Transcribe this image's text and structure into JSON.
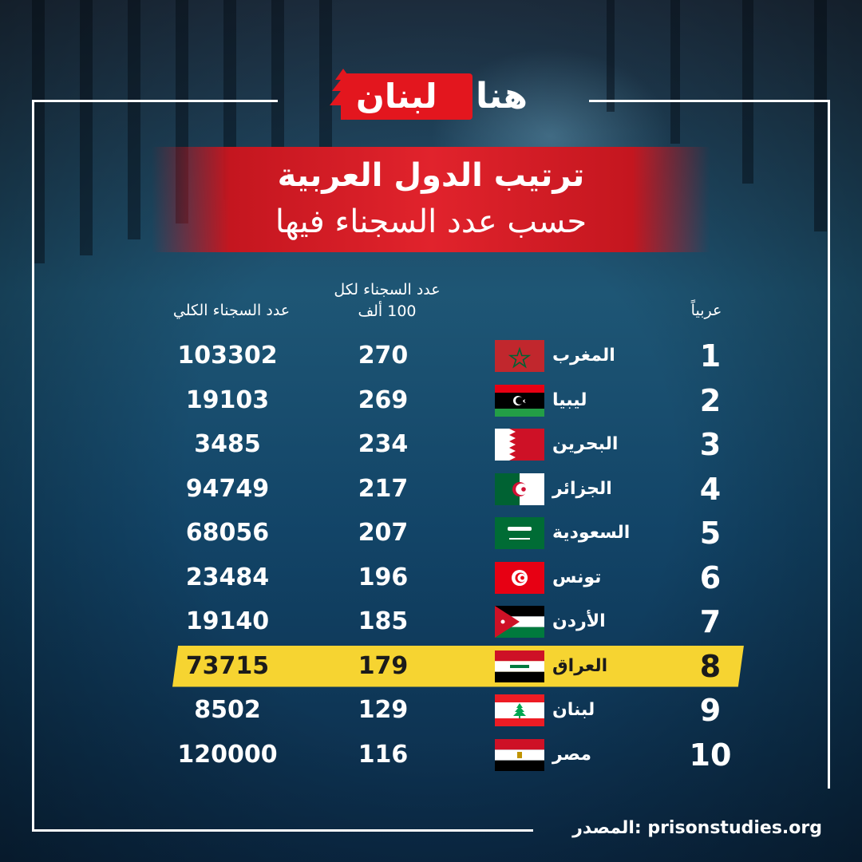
{
  "brand": {
    "logo_part1": "لبنان",
    "logo_part2": "هنا"
  },
  "title": {
    "line1": "ترتيب الدول العربية",
    "line2": "حسب عدد السجناء فيها"
  },
  "headers": {
    "rank": "عربياً",
    "per_100k": "عدد السجناء لكل 100 ألف",
    "total": "عدد السجناء الكلي"
  },
  "colors": {
    "brand_red": "#e3161e",
    "highlight_yellow": "#f6d431",
    "background_blue": "#1e5675"
  },
  "chart_data": {
    "type": "table",
    "title": "ترتيب الدول العربية حسب عدد السجناء فيها",
    "columns": [
      "عربياً",
      "",
      "عدد السجناء لكل 100 ألف",
      "عدد السجناء الكلي"
    ],
    "highlighted_rank": 8,
    "rows": [
      {
        "rank": "1",
        "country": "المغرب",
        "flag": "morocco-flag-icon",
        "per_100k": "270",
        "total": "103302"
      },
      {
        "rank": "2",
        "country": "ليبيا",
        "flag": "libya-flag-icon",
        "per_100k": "269",
        "total": "19103"
      },
      {
        "rank": "3",
        "country": "البحرين",
        "flag": "bahrain-flag-icon",
        "per_100k": "234",
        "total": "3485"
      },
      {
        "rank": "4",
        "country": "الجزائر",
        "flag": "algeria-flag-icon",
        "per_100k": "217",
        "total": "94749"
      },
      {
        "rank": "5",
        "country": "السعودية",
        "flag": "saudi-arabia-flag-icon",
        "per_100k": "207",
        "total": "68056"
      },
      {
        "rank": "6",
        "country": "تونس",
        "flag": "tunisia-flag-icon",
        "per_100k": "196",
        "total": "23484"
      },
      {
        "rank": "7",
        "country": "الأردن",
        "flag": "jordan-flag-icon",
        "per_100k": "185",
        "total": "19140"
      },
      {
        "rank": "8",
        "country": "العراق",
        "flag": "iraq-flag-icon",
        "per_100k": "179",
        "total": "73715"
      },
      {
        "rank": "9",
        "country": "لبنان",
        "flag": "lebanon-flag-icon",
        "per_100k": "129",
        "total": "8502"
      },
      {
        "rank": "10",
        "country": "مصر",
        "flag": "egypt-flag-icon",
        "per_100k": "116",
        "total": "120000"
      }
    ]
  },
  "source": "المصدر: prisonstudies.org"
}
